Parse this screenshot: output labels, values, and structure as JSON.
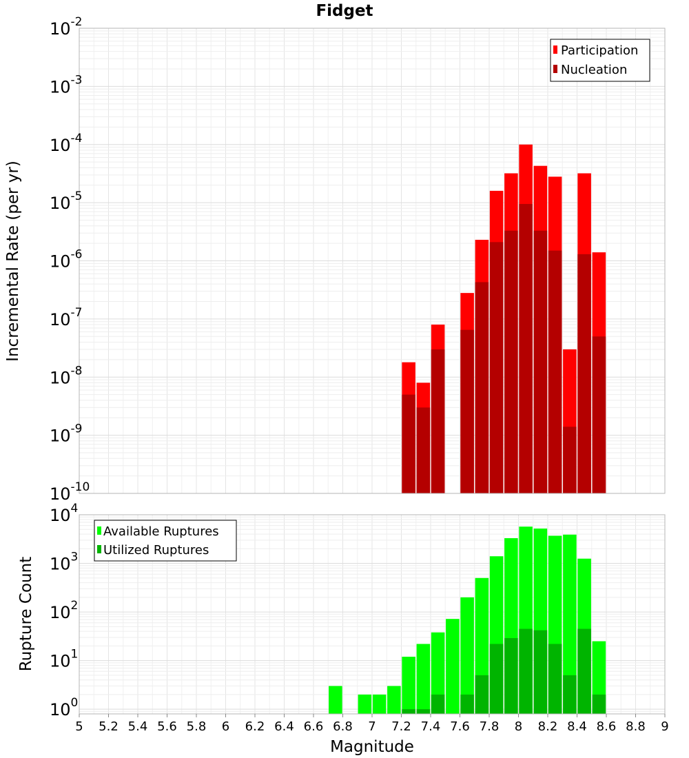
{
  "chart_data": [
    {
      "type": "bar",
      "title": "Fidget",
      "xlabel": "",
      "ylabel": "Incremental Rate (per yr)",
      "yscale": "log",
      "ylim": [
        1e-10,
        0.01
      ],
      "xlim": [
        5,
        9
      ],
      "y_tick_exponents": [
        "-10",
        "-9",
        "-8",
        "-7",
        "-6",
        "-5",
        "-4",
        "-3",
        "-2"
      ],
      "grid": true,
      "legend_position": "top-right",
      "overlay": true,
      "x": [
        7.25,
        7.35,
        7.45,
        7.55,
        7.65,
        7.75,
        7.85,
        7.95,
        8.05,
        8.15,
        8.25,
        8.35,
        8.45,
        8.55
      ],
      "series": [
        {
          "name": "Participation",
          "color": "#ff0000",
          "values": [
            1.8e-08,
            8e-09,
            8e-08,
            null,
            2.8e-07,
            2.3e-06,
            1.6e-05,
            3.2e-05,
            0.0001,
            4.3e-05,
            2.8e-05,
            3e-08,
            3.2e-05,
            1.4e-06
          ]
        },
        {
          "name": "Nucleation",
          "color": "#b40000",
          "values": [
            5e-09,
            3e-09,
            3e-08,
            null,
            6.5e-08,
            4.3e-07,
            2.1e-06,
            3.3e-06,
            9.5e-06,
            3.3e-06,
            1.5e-06,
            1.4e-09,
            1.3e-06,
            5e-08
          ]
        }
      ]
    },
    {
      "type": "bar",
      "xlabel": "Magnitude",
      "ylabel": "Rupture Count",
      "yscale": "log",
      "ylim": [
        0.8,
        10000
      ],
      "xlim": [
        5,
        9
      ],
      "y_tick_exponents": [
        "0",
        "1",
        "2",
        "3",
        "4"
      ],
      "x_ticks": [
        "5",
        "5.2",
        "5.4",
        "5.6",
        "5.8",
        "6",
        "6.2",
        "6.4",
        "6.6",
        "6.8",
        "7",
        "7.2",
        "7.4",
        "7.6",
        "7.8",
        "8",
        "8.2",
        "8.4",
        "8.6",
        "8.8",
        "9"
      ],
      "grid": true,
      "legend_position": "top-left",
      "overlay": true,
      "x": [
        6.75,
        6.95,
        7.05,
        7.15,
        7.25,
        7.35,
        7.45,
        7.55,
        7.65,
        7.75,
        7.85,
        7.95,
        8.05,
        8.15,
        8.25,
        8.35,
        8.45,
        8.55
      ],
      "series": [
        {
          "name": "Available Ruptures",
          "color": "#00ff00",
          "values": [
            3,
            2,
            2,
            3,
            12,
            22,
            38,
            72,
            200,
            500,
            1400,
            3300,
            5700,
            5200,
            3700,
            3900,
            1250,
            25
          ]
        },
        {
          "name": "Utilized Ruptures",
          "color": "#00b400",
          "values": [
            null,
            null,
            null,
            null,
            1,
            1,
            2,
            null,
            2,
            5,
            22,
            29,
            45,
            42,
            22,
            5,
            45,
            2
          ]
        }
      ]
    }
  ]
}
